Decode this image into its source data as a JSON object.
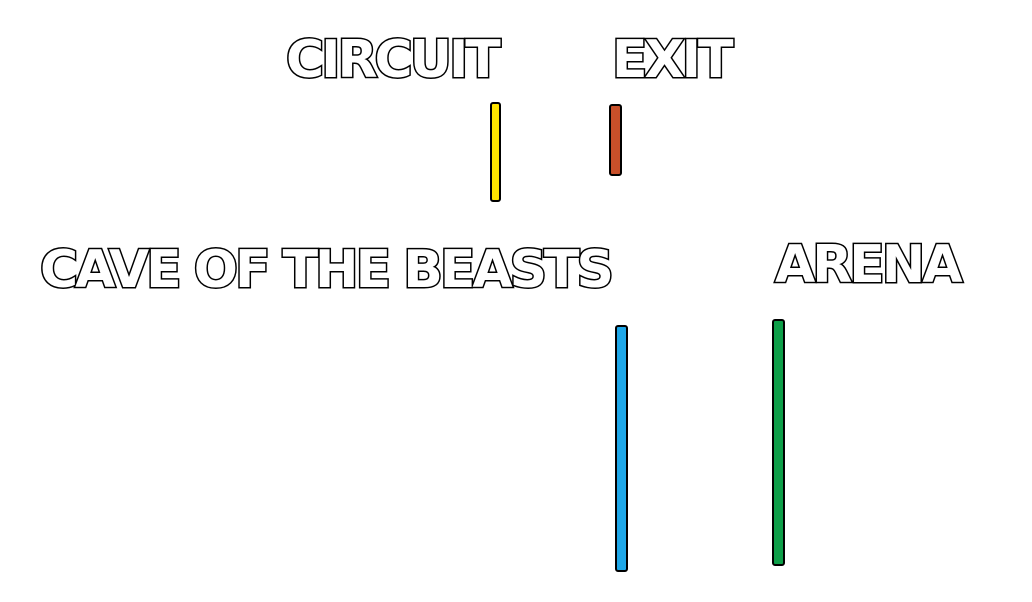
{
  "labels": {
    "circuit": "CIRCUIT",
    "exit": "EXIT",
    "cave": "CAVE OF THE BEASTS",
    "arena": "ARENA"
  },
  "colors": {
    "circuit": "#FFE500",
    "exit": "#C8502A",
    "cave": "#1EA7E8",
    "arena": "#0E9F49",
    "outline": "#000000",
    "text_fill": "#FFFFFF",
    "background": "#FFFFFF"
  }
}
